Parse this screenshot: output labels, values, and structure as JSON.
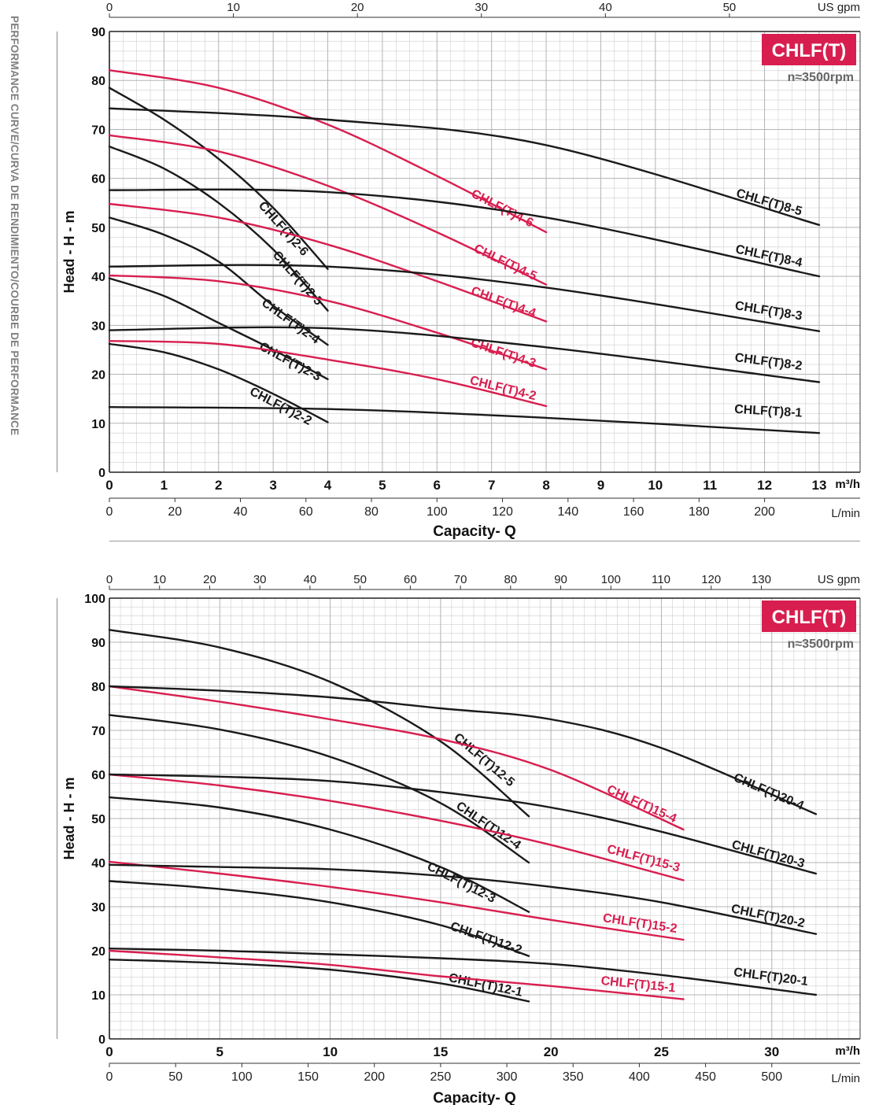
{
  "side_title": "PERFORMANCE CURVE/CURVA DE RENDIMIENTO/COURBE DE PERFORMANCE",
  "colors": {
    "black": "#1a1a1a",
    "red": "#d81e4f",
    "badge": "#d81e4f",
    "grid": "#cfcfcf",
    "grid_major": "#b5b5b5"
  },
  "chart_data": [
    {
      "type": "line",
      "badge": "CHLF(T)",
      "speed": "n≈3500rpm",
      "ylabel": "Head - H - m",
      "xlabel": "Capacity- Q",
      "x_unit": "m³/h",
      "x_unit_lmin": "L/min",
      "x_unit_usgpm": "US gpm",
      "xlim": [
        0,
        13.75
      ],
      "ylim": [
        0,
        90
      ],
      "y_ticks": [
        0,
        10,
        20,
        30,
        40,
        50,
        60,
        70,
        80,
        90
      ],
      "x_ticks": [
        0,
        1,
        2,
        3,
        4,
        5,
        6,
        7,
        8,
        9,
        10,
        11,
        12,
        13
      ],
      "lmin_ticks": [
        0,
        20,
        40,
        60,
        80,
        100,
        120,
        140,
        160,
        180,
        200
      ],
      "usgpm_ticks": [
        0,
        10,
        20,
        30,
        40,
        50
      ],
      "grid": true,
      "series": [
        {
          "name": "CHLF(T)2-2",
          "color": "black",
          "x": [
            0,
            1,
            2,
            3,
            4
          ],
          "y": [
            26.2,
            24.5,
            21,
            16,
            10.2
          ]
        },
        {
          "name": "CHLF(T)2-3",
          "color": "black",
          "x": [
            0,
            1,
            2,
            3,
            4
          ],
          "y": [
            39.6,
            36,
            30.5,
            25,
            19
          ]
        },
        {
          "name": "CHLF(T)2-4",
          "color": "black",
          "x": [
            0,
            1,
            2,
            3,
            4
          ],
          "y": [
            52,
            48.5,
            43,
            34,
            26
          ]
        },
        {
          "name": "CHLF(T)2-5",
          "color": "black",
          "x": [
            0,
            1,
            2,
            3,
            4
          ],
          "y": [
            66.5,
            62,
            55,
            45.5,
            33
          ]
        },
        {
          "name": "CHLF(T)2-6",
          "color": "black",
          "x": [
            0,
            1,
            2,
            3,
            4
          ],
          "y": [
            78.5,
            72,
            64,
            54,
            41.5
          ]
        },
        {
          "name": "CHLF(T)4-2",
          "color": "red",
          "x": [
            0,
            2,
            4,
            6,
            8
          ],
          "y": [
            26.8,
            26.2,
            23,
            19,
            13.5
          ]
        },
        {
          "name": "CHLF(T)4-3",
          "color": "red",
          "x": [
            0,
            2,
            4,
            6,
            8
          ],
          "y": [
            40.2,
            39,
            35,
            28.5,
            21
          ]
        },
        {
          "name": "CHLF(T)4-4",
          "color": "red",
          "x": [
            0,
            2,
            4,
            6,
            8
          ],
          "y": [
            54.8,
            52,
            46.5,
            39,
            30.8
          ]
        },
        {
          "name": "CHLF(T)4-5",
          "color": "red",
          "x": [
            0,
            2,
            4,
            6,
            8
          ],
          "y": [
            68.8,
            65.5,
            58.5,
            49,
            38.3
          ]
        },
        {
          "name": "CHLF(T)4-6",
          "color": "red",
          "x": [
            0,
            2,
            4,
            6,
            8
          ],
          "y": [
            82.1,
            78.5,
            71,
            60.5,
            49
          ]
        },
        {
          "name": "CHLF(T)8-1",
          "color": "black",
          "x": [
            0,
            4,
            8,
            13
          ],
          "y": [
            13.3,
            12.9,
            11.1,
            8
          ]
        },
        {
          "name": "CHLF(T)8-2",
          "color": "black",
          "x": [
            0,
            4,
            8,
            13
          ],
          "y": [
            29,
            29.4,
            25.5,
            18.4
          ]
        },
        {
          "name": "CHLF(T)8-3",
          "color": "black",
          "x": [
            0,
            4,
            8,
            13
          ],
          "y": [
            42,
            42,
            37.7,
            28.8
          ]
        },
        {
          "name": "CHLF(T)8-4",
          "color": "black",
          "x": [
            0,
            4,
            8,
            13
          ],
          "y": [
            57.6,
            57.2,
            52,
            40
          ]
        },
        {
          "name": "CHLF(T)8-5",
          "color": "black",
          "x": [
            0,
            4,
            8,
            13
          ],
          "y": [
            74.3,
            72,
            66.8,
            50.5
          ]
        }
      ],
      "label_positions": []
    },
    {
      "type": "line",
      "badge": "CHLF(T)",
      "speed": "n≈3500rpm",
      "ylabel": "Head - H - m",
      "xlabel": "Capacity- Q",
      "x_unit": "m³/h",
      "x_unit_lmin": "L/min",
      "x_unit_usgpm": "US gpm",
      "xlim": [
        0,
        34
      ],
      "ylim": [
        0,
        100
      ],
      "y_ticks": [
        0,
        10,
        20,
        30,
        40,
        50,
        60,
        70,
        80,
        90,
        100
      ],
      "x_ticks": [
        0,
        5,
        10,
        15,
        20,
        25,
        30
      ],
      "lmin_ticks": [
        0,
        50,
        100,
        150,
        200,
        250,
        300,
        350,
        400,
        450,
        500
      ],
      "usgpm_ticks": [
        0,
        10,
        20,
        30,
        40,
        50,
        60,
        70,
        80,
        90,
        100,
        110,
        120,
        130
      ],
      "grid": true,
      "series": [
        {
          "name": "CHLF(T)12-1",
          "color": "black",
          "x": [
            0,
            5,
            10,
            15,
            19
          ],
          "y": [
            18,
            17.2,
            15.7,
            12.6,
            8.5
          ]
        },
        {
          "name": "CHLF(T)12-2",
          "color": "black",
          "x": [
            0,
            5,
            10,
            15,
            19
          ],
          "y": [
            35.8,
            34,
            31,
            25.8,
            18.8
          ]
        },
        {
          "name": "CHLF(T)12-3",
          "color": "black",
          "x": [
            0,
            5,
            10,
            15,
            19
          ],
          "y": [
            54.8,
            52.5,
            47.5,
            39,
            28.8
          ]
        },
        {
          "name": "CHLF(T)12-4",
          "color": "black",
          "x": [
            0,
            5,
            10,
            15,
            19
          ],
          "y": [
            73.5,
            70.2,
            64,
            53.5,
            40
          ]
        },
        {
          "name": "CHLF(T)12-5",
          "color": "black",
          "x": [
            0,
            5,
            10,
            15,
            19
          ],
          "y": [
            92.8,
            88.8,
            81,
            67.5,
            50.5
          ]
        },
        {
          "name": "CHLF(T)15-1",
          "color": "red",
          "x": [
            0,
            5,
            10,
            15,
            20,
            26
          ],
          "y": [
            20,
            18.5,
            16.8,
            14.2,
            12,
            9
          ]
        },
        {
          "name": "CHLF(T)15-2",
          "color": "red",
          "x": [
            0,
            5,
            10,
            15,
            20,
            26
          ],
          "y": [
            40.2,
            37.5,
            34.5,
            31,
            27,
            22.5
          ]
        },
        {
          "name": "CHLF(T)15-3",
          "color": "red",
          "x": [
            0,
            5,
            10,
            15,
            20,
            26
          ],
          "y": [
            60,
            57.5,
            54,
            49.5,
            44,
            36
          ]
        },
        {
          "name": "CHLF(T)15-4",
          "color": "red",
          "x": [
            0,
            5,
            10,
            15,
            20,
            26
          ],
          "y": [
            80,
            76.5,
            72.5,
            68,
            61,
            47.5
          ]
        },
        {
          "name": "CHLF(T)20-1",
          "color": "black",
          "x": [
            0,
            5,
            10,
            15,
            20,
            25,
            32
          ],
          "y": [
            20.5,
            20,
            19.2,
            18.3,
            17,
            14.5,
            10
          ]
        },
        {
          "name": "CHLF(T)20-2",
          "color": "black",
          "x": [
            0,
            5,
            10,
            15,
            20,
            25,
            32
          ],
          "y": [
            39.5,
            39,
            38.5,
            37,
            34.5,
            31,
            23.8
          ]
        },
        {
          "name": "CHLF(T)20-3",
          "color": "black",
          "x": [
            0,
            5,
            10,
            15,
            20,
            25,
            32
          ],
          "y": [
            60,
            59.5,
            58.5,
            56,
            52.5,
            47,
            37.5
          ]
        },
        {
          "name": "CHLF(T)20-4",
          "color": "black",
          "x": [
            0,
            5,
            10,
            15,
            20,
            25,
            32
          ],
          "y": [
            80,
            79,
            77.5,
            75,
            72.5,
            66,
            51
          ]
        }
      ]
    }
  ]
}
